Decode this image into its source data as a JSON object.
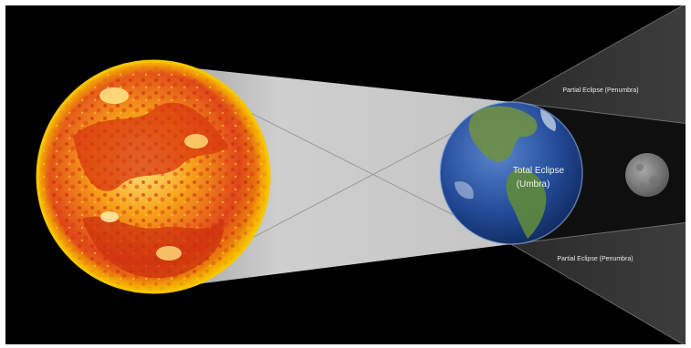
{
  "labels": {
    "upper_penumbra": "Partial Eclipse (Penumbra)",
    "umbra_line1": "Total Eclipse",
    "umbra_line2": "(Umbra)",
    "lower_penumbra": "Partial Eclipse (Penumbra)"
  },
  "colors": {
    "space": "#000000",
    "sun_core": "#f0a500",
    "sun_surface": "#d83a12",
    "sun_rim": "#f5c000",
    "sunlight_cone": "#c9c9c9",
    "penumbra": "#3a3a3a",
    "umbra": "#111111",
    "earth_ocean": "#2f56a6",
    "earth_land": "#5a7a3a",
    "moon": "#8e8e8e"
  },
  "bodies": {
    "sun": "sun",
    "earth": "earth",
    "moon": "moon"
  }
}
